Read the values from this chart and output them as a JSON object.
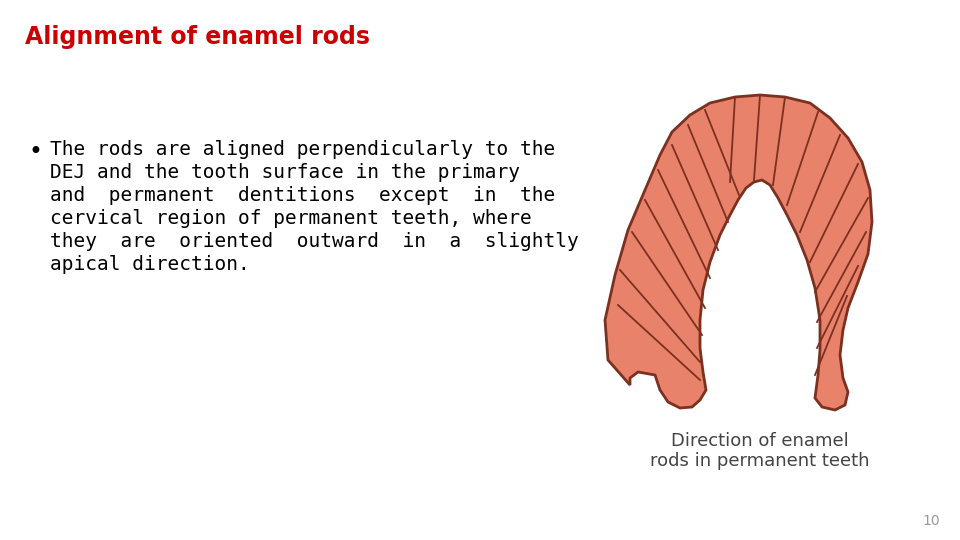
{
  "title": "Alignment of enamel rods",
  "title_color": "#CC0000",
  "title_fontsize": 17,
  "bullet_lines": [
    "The rods are aligned perpendicularly to the",
    "DEJ and the tooth surface in the primary",
    "and  permanent  dentitions  except  in  the",
    "cervical region of permanent teeth, where",
    "they  are  oriented  outward  in  a  slightly",
    "apical direction."
  ],
  "bullet_fontsize": 14,
  "caption_line1": "Direction of enamel",
  "caption_line2": "rods in permanent teeth",
  "caption_fontsize": 13,
  "page_number": "10",
  "background_color": "#ffffff",
  "enamel_fill_color": "#E8826A",
  "enamel_outline_color": "#7B3020",
  "line_color": "#7B3020",
  "text_color": "#000000",
  "caption_color": "#444444"
}
